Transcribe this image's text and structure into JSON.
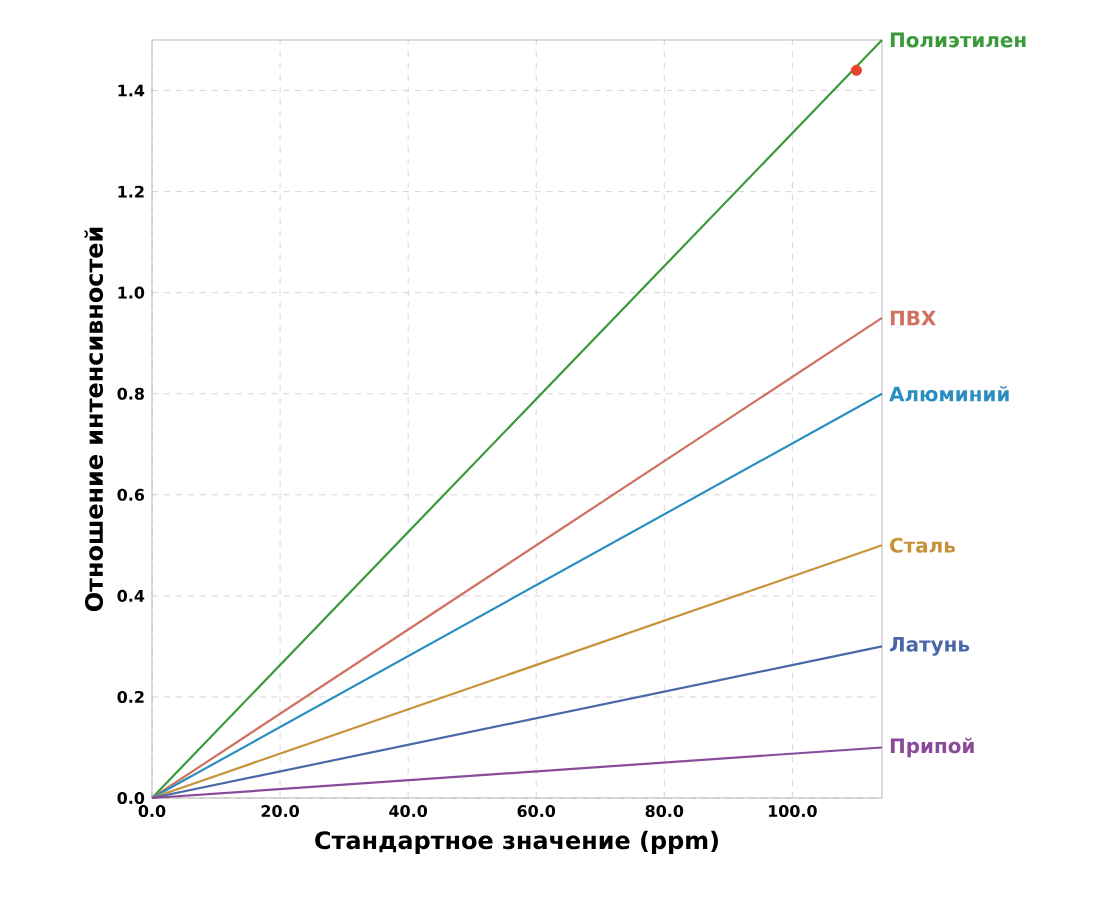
{
  "chart_data": {
    "type": "line",
    "xlabel": "Стандартное значение (ppm)",
    "ylabel": "Отношение интенсивностей",
    "xlim": [
      0,
      114
    ],
    "ylim": [
      0,
      1.5
    ],
    "xticks": [
      {
        "value": 0,
        "label": "0.0"
      },
      {
        "value": 20,
        "label": "20.0"
      },
      {
        "value": 40,
        "label": "40.0"
      },
      {
        "value": 60,
        "label": "60.0"
      },
      {
        "value": 80,
        "label": "80.0"
      },
      {
        "value": 100,
        "label": "100.0"
      }
    ],
    "yticks": [
      {
        "value": 0,
        "label": "0.0"
      },
      {
        "value": 0.2,
        "label": "0.2"
      },
      {
        "value": 0.4,
        "label": "0.4"
      },
      {
        "value": 0.6,
        "label": "0.6"
      },
      {
        "value": 0.8,
        "label": "0.8"
      },
      {
        "value": 1.0,
        "label": "1.0"
      },
      {
        "value": 1.2,
        "label": "1.2"
      },
      {
        "value": 1.4,
        "label": "1.4"
      }
    ],
    "grid": true,
    "line_style": "solid",
    "series": [
      {
        "name": "Полиэтилен",
        "color": "#3a9a3a",
        "x": [
          0,
          114
        ],
        "values": [
          0,
          1.5
        ]
      },
      {
        "name": "ПВХ",
        "color": "#d0705f",
        "x": [
          0,
          114
        ],
        "values": [
          0,
          0.95
        ]
      },
      {
        "name": "Алюминий",
        "color": "#2a8fc0",
        "x": [
          0,
          114
        ],
        "values": [
          0,
          0.8
        ]
      },
      {
        "name": "Сталь",
        "color": "#c8923a",
        "x": [
          0,
          114
        ],
        "values": [
          0,
          0.5
        ]
      },
      {
        "name": "Латунь",
        "color": "#4a68a8",
        "x": [
          0,
          114
        ],
        "values": [
          0,
          0.3
        ]
      },
      {
        "name": "Припой",
        "color": "#8a4a9a",
        "x": [
          0,
          114
        ],
        "values": [
          0,
          0.1
        ]
      },
      {
        "type": "scatter",
        "color": "#e8432f",
        "x": [
          110
        ],
        "values": [
          1.44
        ]
      }
    ]
  }
}
